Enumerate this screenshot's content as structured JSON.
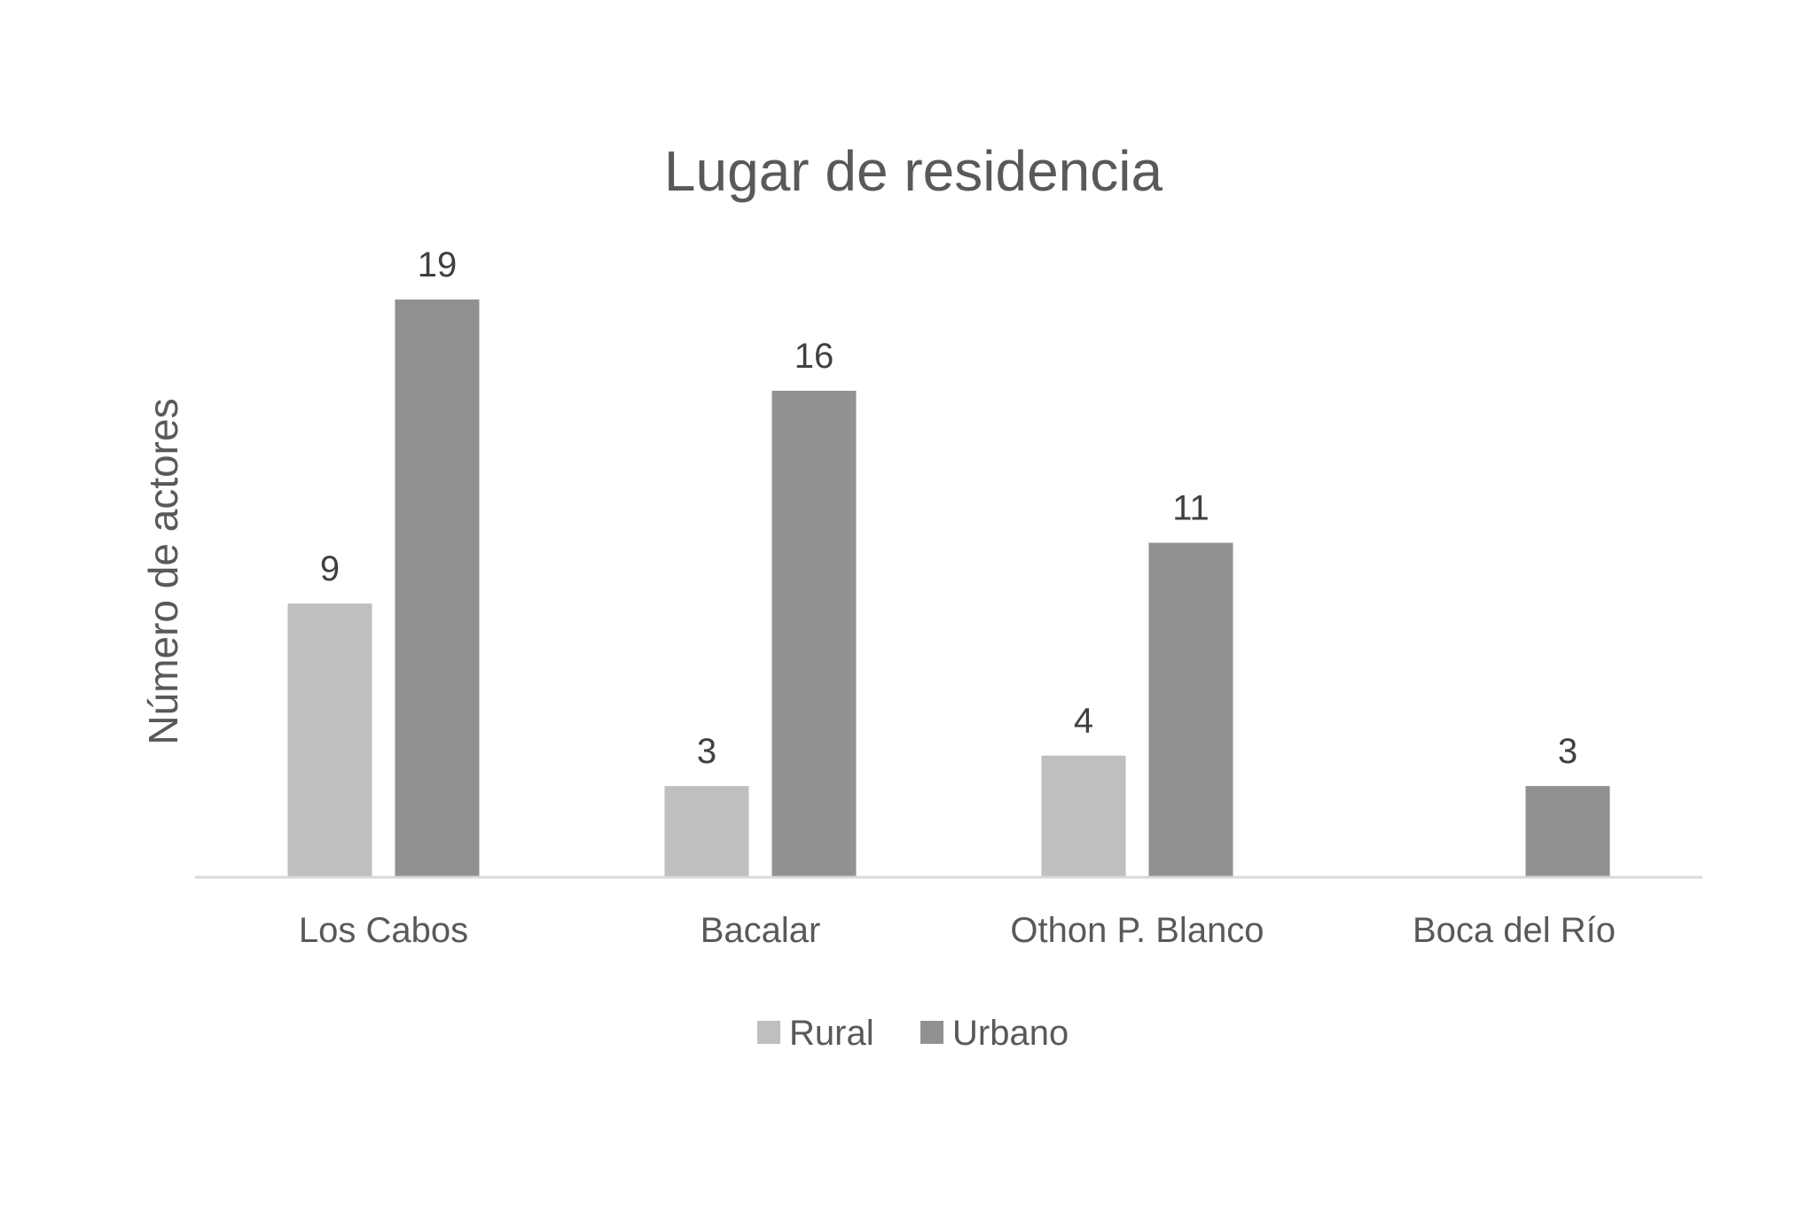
{
  "chart_data": {
    "type": "bar",
    "title": "Lugar de residencia",
    "xlabel": "",
    "ylabel": "Número de actores",
    "categories": [
      "Los Cabos",
      "Bacalar",
      "Othon P. Blanco",
      "Boca del Río"
    ],
    "series": [
      {
        "name": "Rural",
        "values": [
          9,
          3,
          4,
          null
        ],
        "color": "#bfbfbf"
      },
      {
        "name": "Urbano",
        "values": [
          19,
          16,
          11,
          3
        ],
        "color": "#919191"
      }
    ],
    "ylim": [
      0,
      19
    ],
    "grid": false,
    "data_labels": true,
    "legend_position": "bottom"
  }
}
